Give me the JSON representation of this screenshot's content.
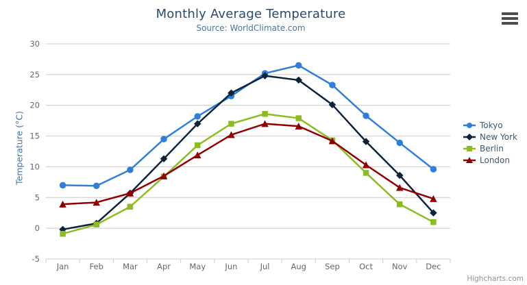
{
  "chart": {
    "title": "Monthly Average Temperature",
    "subtitle": "Source: WorldClimate.com",
    "credits": "Highcharts.com",
    "menu_icon": "hamburger-icon"
  },
  "chart_data": {
    "type": "line",
    "title": "Monthly Average Temperature",
    "subtitle": "Source: WorldClimate.com",
    "categories": [
      "Jan",
      "Feb",
      "Mar",
      "Apr",
      "May",
      "Jun",
      "Jul",
      "Aug",
      "Sep",
      "Oct",
      "Nov",
      "Dec"
    ],
    "series": [
      {
        "name": "Tokyo",
        "color": "#2f7ed8",
        "marker": "circle",
        "values": [
          7.0,
          6.9,
          9.5,
          14.5,
          18.2,
          21.5,
          25.2,
          26.5,
          23.3,
          18.3,
          13.9,
          9.6
        ]
      },
      {
        "name": "New York",
        "color": "#0d233a",
        "marker": "diamond",
        "values": [
          -0.2,
          0.8,
          5.7,
          11.3,
          17.0,
          22.0,
          24.8,
          24.1,
          20.1,
          14.1,
          8.6,
          2.5
        ]
      },
      {
        "name": "Berlin",
        "color": "#8bbc21",
        "marker": "square",
        "values": [
          -0.9,
          0.6,
          3.5,
          8.4,
          13.5,
          17.0,
          18.6,
          17.9,
          14.3,
          9.0,
          3.9,
          1.0
        ]
      },
      {
        "name": "London",
        "color": "#910000",
        "marker": "triangle",
        "values": [
          3.9,
          4.2,
          5.7,
          8.5,
          11.9,
          15.2,
          17.0,
          16.6,
          14.2,
          10.3,
          6.6,
          4.8
        ]
      }
    ],
    "xlabel": "",
    "ylabel": "Temperature (°C)",
    "ylim": [
      -5,
      30
    ],
    "ytick_step": 5,
    "grid": true,
    "legend_position": "right"
  },
  "style_colors": {
    "grid_line": "#c8c8c8",
    "axis_line": "#c0d0e0",
    "tick_label": "#666666",
    "title_text": "#274b6d",
    "subtitle_text": "#4d759e",
    "legend_text": "#3e576f"
  }
}
